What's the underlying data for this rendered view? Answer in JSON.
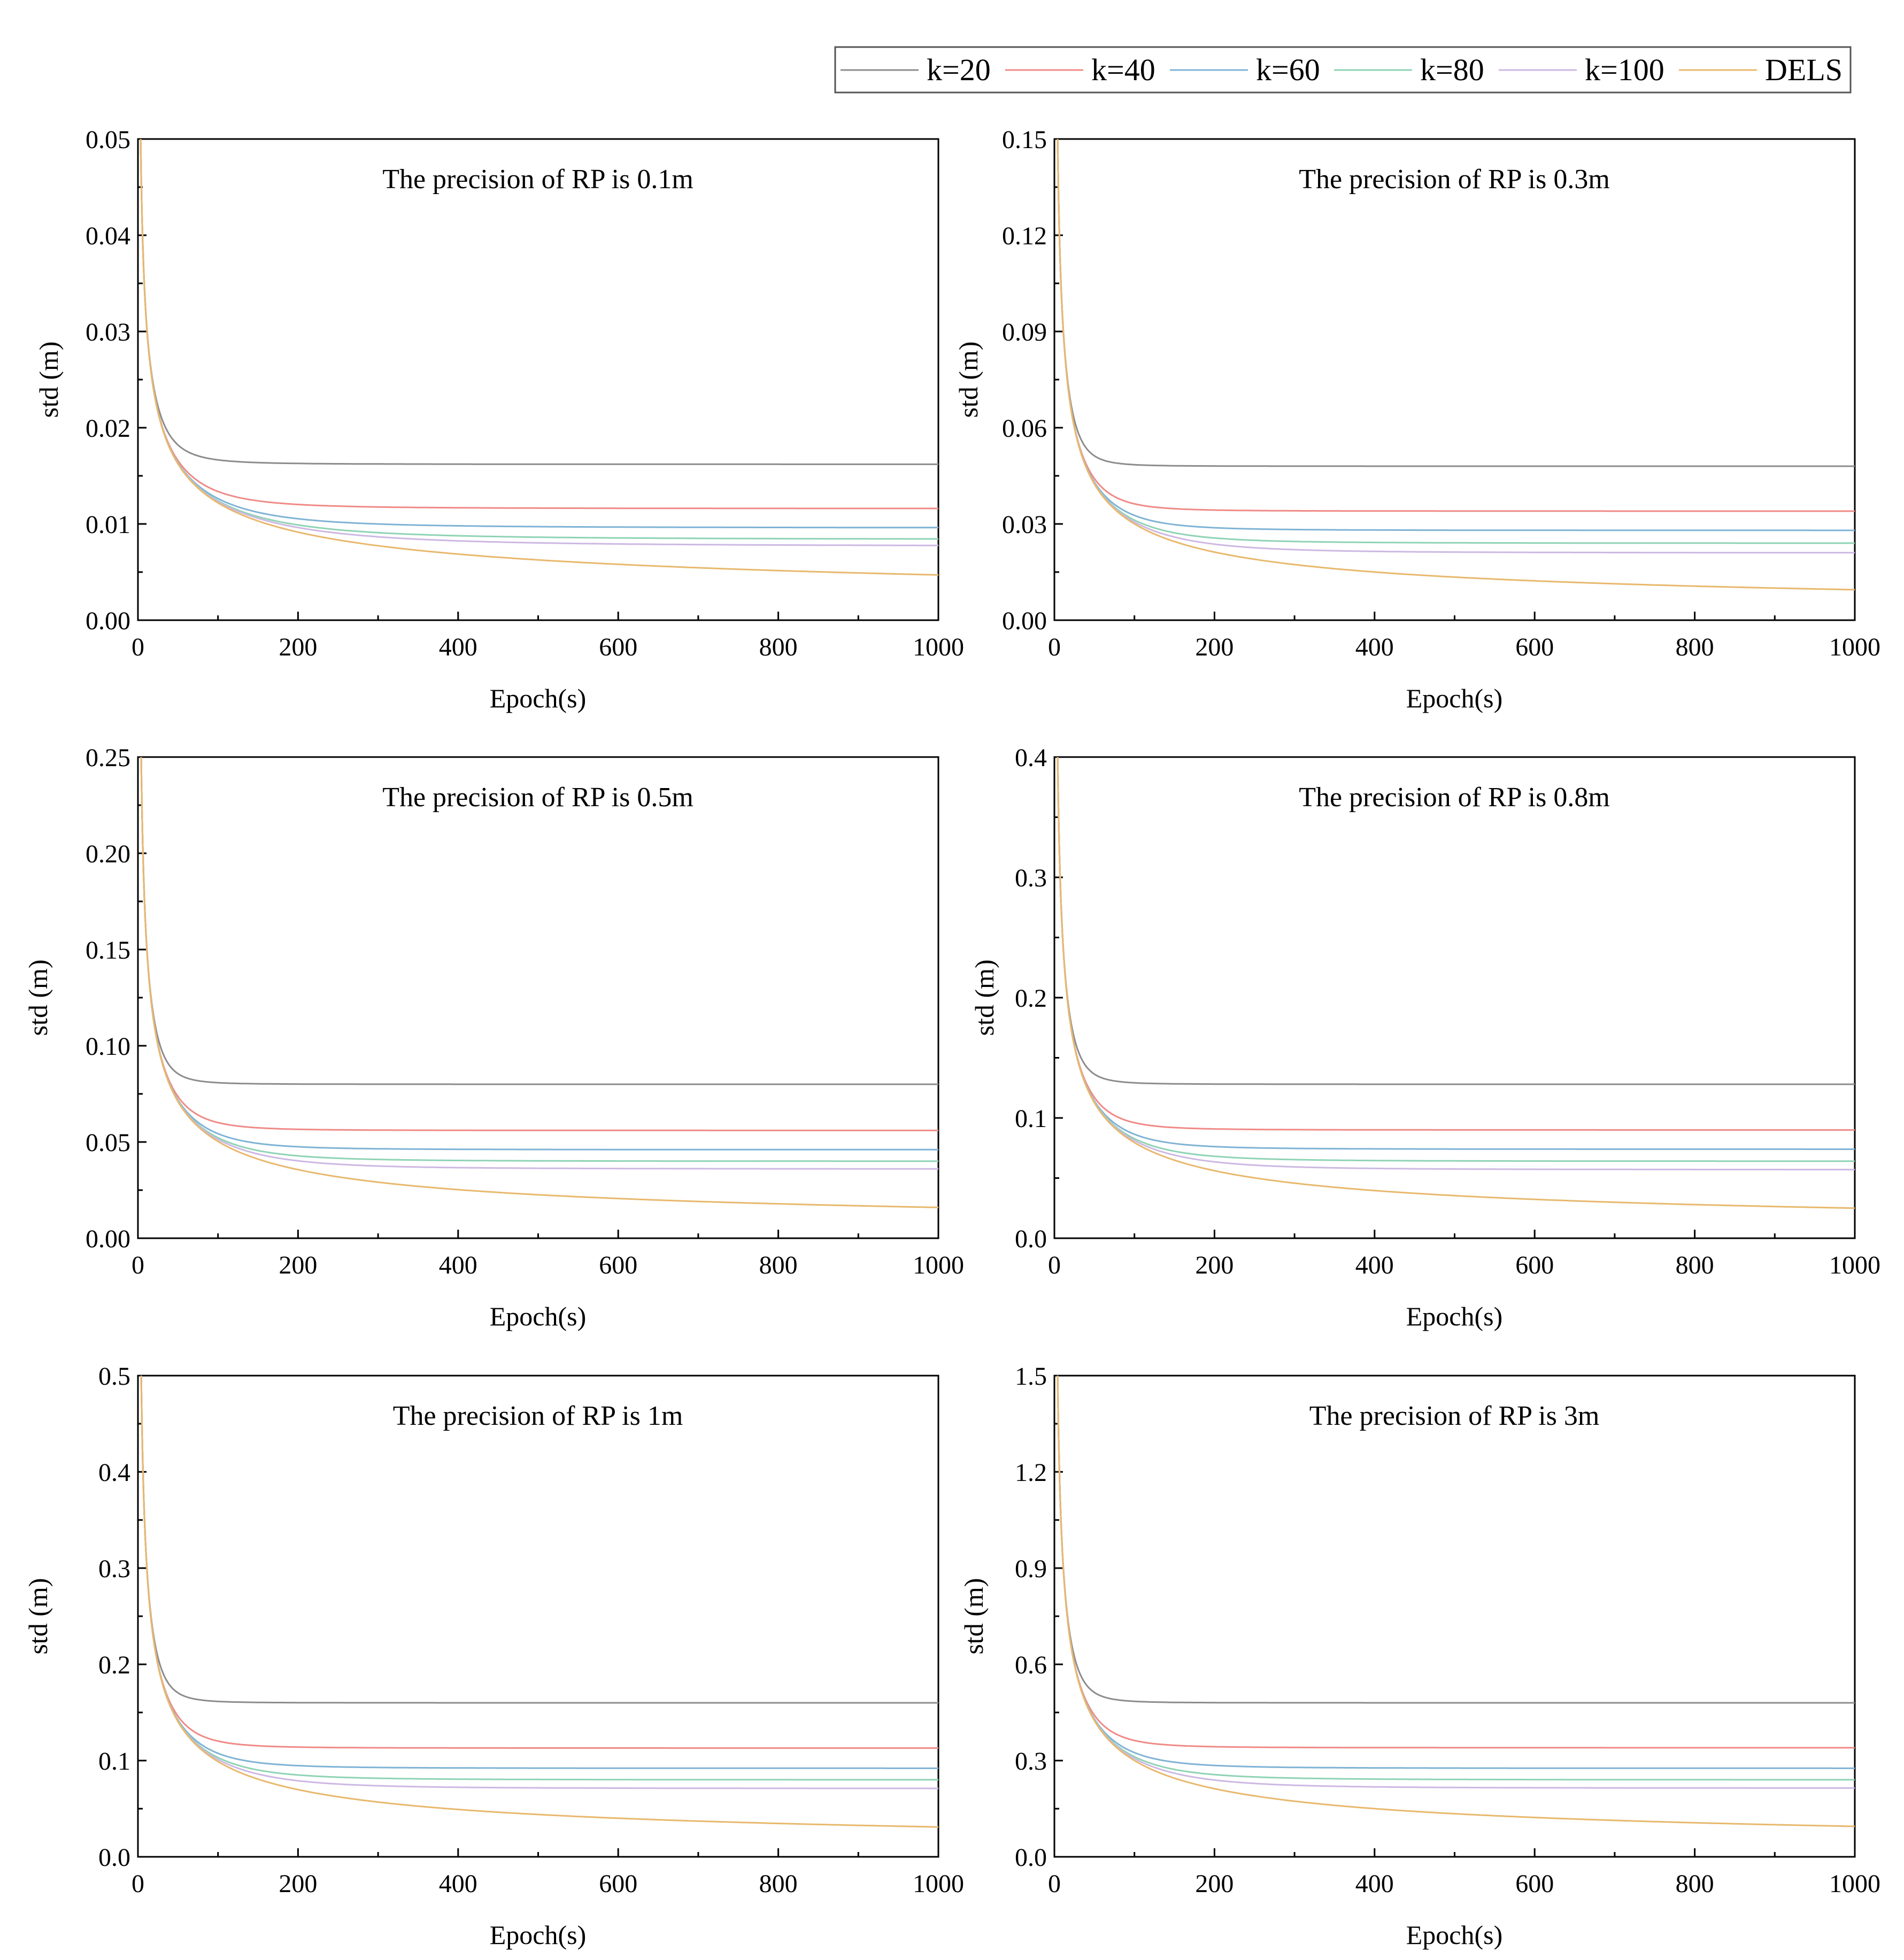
{
  "figure": {
    "legend": {
      "entries": [
        {
          "label": "k=20",
          "color": "#8c8c8c"
        },
        {
          "label": "k=40",
          "color": "#f08a86"
        },
        {
          "label": "k=60",
          "color": "#7fb3d5"
        },
        {
          "label": "k=80",
          "color": "#8fd3b5"
        },
        {
          "label": "k=100",
          "color": "#cdb8e3"
        },
        {
          "label": "DELS",
          "color": "#e8b86d"
        }
      ]
    }
  },
  "chart_data": [
    {
      "type": "line",
      "title": "The precision of RP is 0.1m",
      "xlabel": "Epoch(s)",
      "ylabel": "std (m)",
      "xlim": [
        0,
        1000
      ],
      "ylim": [
        0,
        0.05
      ],
      "xticks": [
        "0",
        "200",
        "400",
        "600",
        "800",
        "1000"
      ],
      "yticks": [
        "0.00",
        "0.01",
        "0.02",
        "0.03",
        "0.04",
        "0.05"
      ],
      "sigma": 0.1,
      "series": [
        {
          "name": "k=20",
          "plateau": 0.0162
        },
        {
          "name": "k=40",
          "plateau": 0.0116
        },
        {
          "name": "k=60",
          "plateau": 0.0096
        },
        {
          "name": "k=80",
          "plateau": 0.0084
        },
        {
          "name": "k=100",
          "plateau": 0.0077
        },
        {
          "name": "DELS",
          "final": 0.0047
        }
      ]
    },
    {
      "type": "line",
      "title": "The precision of RP is 0.3m",
      "xlabel": "Epoch(s)",
      "ylabel": "std (m)",
      "xlim": [
        0,
        1000
      ],
      "ylim": [
        0,
        0.15
      ],
      "xticks": [
        "0",
        "200",
        "400",
        "600",
        "800",
        "1000"
      ],
      "yticks": [
        "0.00",
        "0.03",
        "0.06",
        "0.09",
        "0.12",
        "0.15"
      ],
      "sigma": 0.3,
      "series": [
        {
          "name": "k=20",
          "plateau": 0.048
        },
        {
          "name": "k=40",
          "plateau": 0.034
        },
        {
          "name": "k=60",
          "plateau": 0.028
        },
        {
          "name": "k=80",
          "plateau": 0.024
        },
        {
          "name": "k=100",
          "plateau": 0.021
        },
        {
          "name": "DELS",
          "final": 0.0095
        }
      ]
    },
    {
      "type": "line",
      "title": "The precision of RP is 0.5m",
      "xlabel": "Epoch(s)",
      "ylabel": "std (m)",
      "xlim": [
        0,
        1000
      ],
      "ylim": [
        0,
        0.25
      ],
      "xticks": [
        "0",
        "200",
        "400",
        "600",
        "800",
        "1000"
      ],
      "yticks": [
        "0.00",
        "0.05",
        "0.10",
        "0.15",
        "0.20",
        "0.25"
      ],
      "sigma": 0.5,
      "series": [
        {
          "name": "k=20",
          "plateau": 0.08
        },
        {
          "name": "k=40",
          "plateau": 0.056
        },
        {
          "name": "k=60",
          "plateau": 0.046
        },
        {
          "name": "k=80",
          "plateau": 0.04
        },
        {
          "name": "k=100",
          "plateau": 0.036
        },
        {
          "name": "DELS",
          "final": 0.016
        }
      ]
    },
    {
      "type": "line",
      "title": "The precision of RP is 0.8m",
      "xlabel": "Epoch(s)",
      "ylabel": "std (m)",
      "xlim": [
        0,
        1000
      ],
      "ylim": [
        0,
        0.4
      ],
      "xticks": [
        "0",
        "200",
        "400",
        "600",
        "800",
        "1000"
      ],
      "yticks": [
        "0.0",
        "0.1",
        "0.2",
        "0.3",
        "0.4"
      ],
      "sigma": 0.8,
      "series": [
        {
          "name": "k=20",
          "plateau": 0.128
        },
        {
          "name": "k=40",
          "plateau": 0.09
        },
        {
          "name": "k=60",
          "plateau": 0.074
        },
        {
          "name": "k=80",
          "plateau": 0.064
        },
        {
          "name": "k=100",
          "plateau": 0.057
        },
        {
          "name": "DELS",
          "final": 0.025
        }
      ]
    },
    {
      "type": "line",
      "title": "The precision of RP is 1m",
      "xlabel": "Epoch(s)",
      "ylabel": "std (m)",
      "xlim": [
        0,
        1000
      ],
      "ylim": [
        0,
        0.5
      ],
      "xticks": [
        "0",
        "200",
        "400",
        "600",
        "800",
        "1000"
      ],
      "yticks": [
        "0.0",
        "0.1",
        "0.2",
        "0.3",
        "0.4",
        "0.5"
      ],
      "sigma": 1.0,
      "series": [
        {
          "name": "k=20",
          "plateau": 0.16
        },
        {
          "name": "k=40",
          "plateau": 0.113
        },
        {
          "name": "k=60",
          "plateau": 0.092
        },
        {
          "name": "k=80",
          "plateau": 0.08
        },
        {
          "name": "k=100",
          "plateau": 0.071
        },
        {
          "name": "DELS",
          "final": 0.031
        }
      ]
    },
    {
      "type": "line",
      "title": "The precision of RP is 3m",
      "xlabel": "Epoch(s)",
      "ylabel": "std (m)",
      "xlim": [
        0,
        1000
      ],
      "ylim": [
        0,
        1.5
      ],
      "xticks": [
        "0",
        "200",
        "400",
        "600",
        "800",
        "1000"
      ],
      "yticks": [
        "0.0",
        "0.3",
        "0.6",
        "0.9",
        "1.2",
        "1.5"
      ],
      "sigma": 3.0,
      "series": [
        {
          "name": "k=20",
          "plateau": 0.48
        },
        {
          "name": "k=40",
          "plateau": 0.34
        },
        {
          "name": "k=60",
          "plateau": 0.276
        },
        {
          "name": "k=80",
          "plateau": 0.24
        },
        {
          "name": "k=100",
          "plateau": 0.214
        },
        {
          "name": "DELS",
          "final": 0.095
        }
      ]
    }
  ]
}
